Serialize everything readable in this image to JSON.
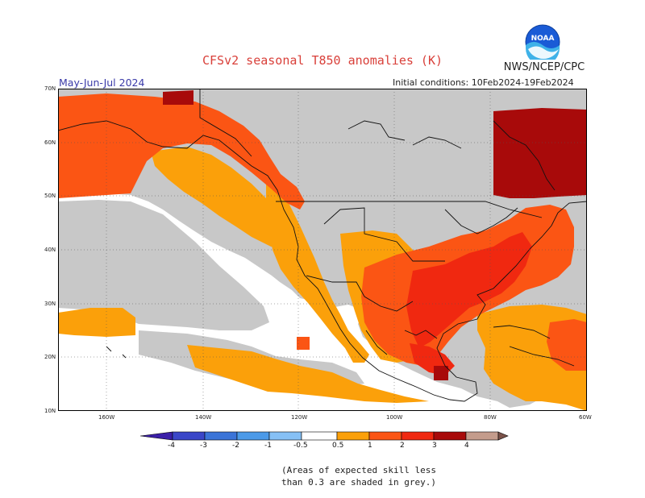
{
  "header": {
    "title": "CFSv2 seasonal T850 anomalies (K)",
    "organization": "NWS/NCEP/CPC",
    "logo_text": "NOAA",
    "season": "May-Jun-Jul 2024",
    "initial_conditions": "Initial conditions: 10Feb2024-19Feb2024"
  },
  "axes": {
    "lat_labels": [
      "70N",
      "60N",
      "50N",
      "40N",
      "30N",
      "20N",
      "10N"
    ],
    "lon_labels": [
      "160W",
      "140W",
      "120W",
      "100W",
      "80W",
      "60W"
    ]
  },
  "legend": {
    "labels": [
      "-4",
      "-3",
      "-2",
      "-1",
      "-0.5",
      "0.5",
      "1",
      "2",
      "3",
      "4"
    ],
    "colors": {
      "neg4": "#3b1fa8",
      "neg3": "#3a46c8",
      "neg2": "#3b74d8",
      "neg1": "#4c9ae8",
      "neg05": "#86c0f5",
      "neutral": "#ffffff",
      "pos05": "#fba00a",
      "pos1": "#fb5514",
      "pos2": "#f02810",
      "pos3": "#a80a0a",
      "pos4": "#c49c8c",
      "pos5": "#7a5249"
    }
  },
  "map_colors": {
    "land_grey": "#c8c8c8",
    "ocean": "#ffffff",
    "orange": "#fba00a",
    "red_orange": "#fb5514",
    "red": "#f02810",
    "dark_red": "#a80a0a",
    "outline": "#111111"
  },
  "note": {
    "line1": "(Areas of expected skill less",
    "line2": "than 0.3 are shaded in grey.)"
  }
}
